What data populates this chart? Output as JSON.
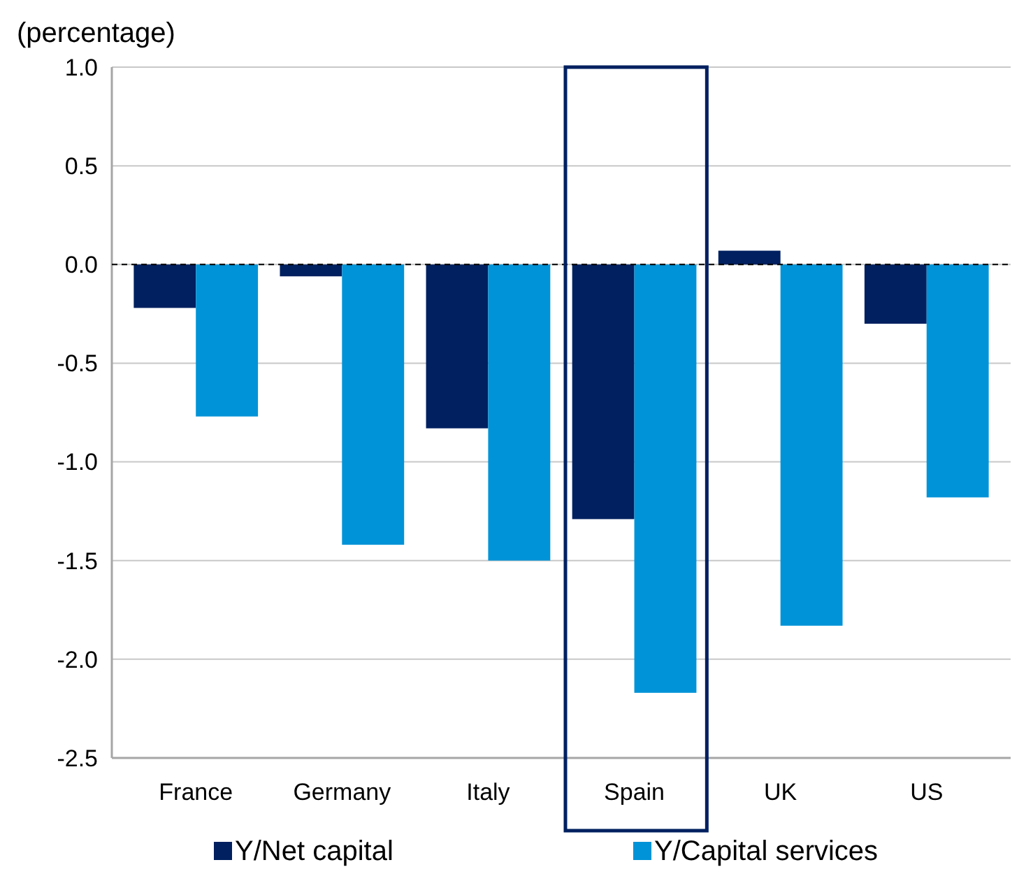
{
  "chart_data": {
    "type": "bar",
    "ylabel": "(percentage)",
    "categories": [
      "France",
      "Germany",
      "Italy",
      "Spain",
      "UK",
      "US"
    ],
    "series": [
      {
        "name": "Y/Net capital",
        "color": "#002060",
        "values": [
          -0.22,
          -0.06,
          -0.83,
          -1.29,
          0.07,
          -0.3
        ]
      },
      {
        "name": "Y/Capital services",
        "color": "#0093d7",
        "values": [
          -0.77,
          -1.42,
          -1.5,
          -2.17,
          -1.83,
          -1.18
        ]
      }
    ],
    "ylim": [
      -2.5,
      1.0
    ],
    "yticks": [
      {
        "value": -2.5,
        "label": "-2.5"
      },
      {
        "value": -2,
        "label": "-2.0"
      },
      {
        "value": -1.5,
        "label": "-1.5"
      },
      {
        "value": -1,
        "label": "-1.0"
      },
      {
        "value": -0.5,
        "label": "-0.5"
      },
      {
        "value": 0,
        "label": "0.0"
      },
      {
        "value": 0.5,
        "label": "0.5"
      },
      {
        "value": 1,
        "label": "1.0"
      }
    ],
    "grid": "y",
    "legend": "bottom",
    "ref_lines": [
      {
        "axis": "y",
        "value": 0,
        "color": "#000000",
        "line_style": "dashed"
      }
    ]
  }
}
